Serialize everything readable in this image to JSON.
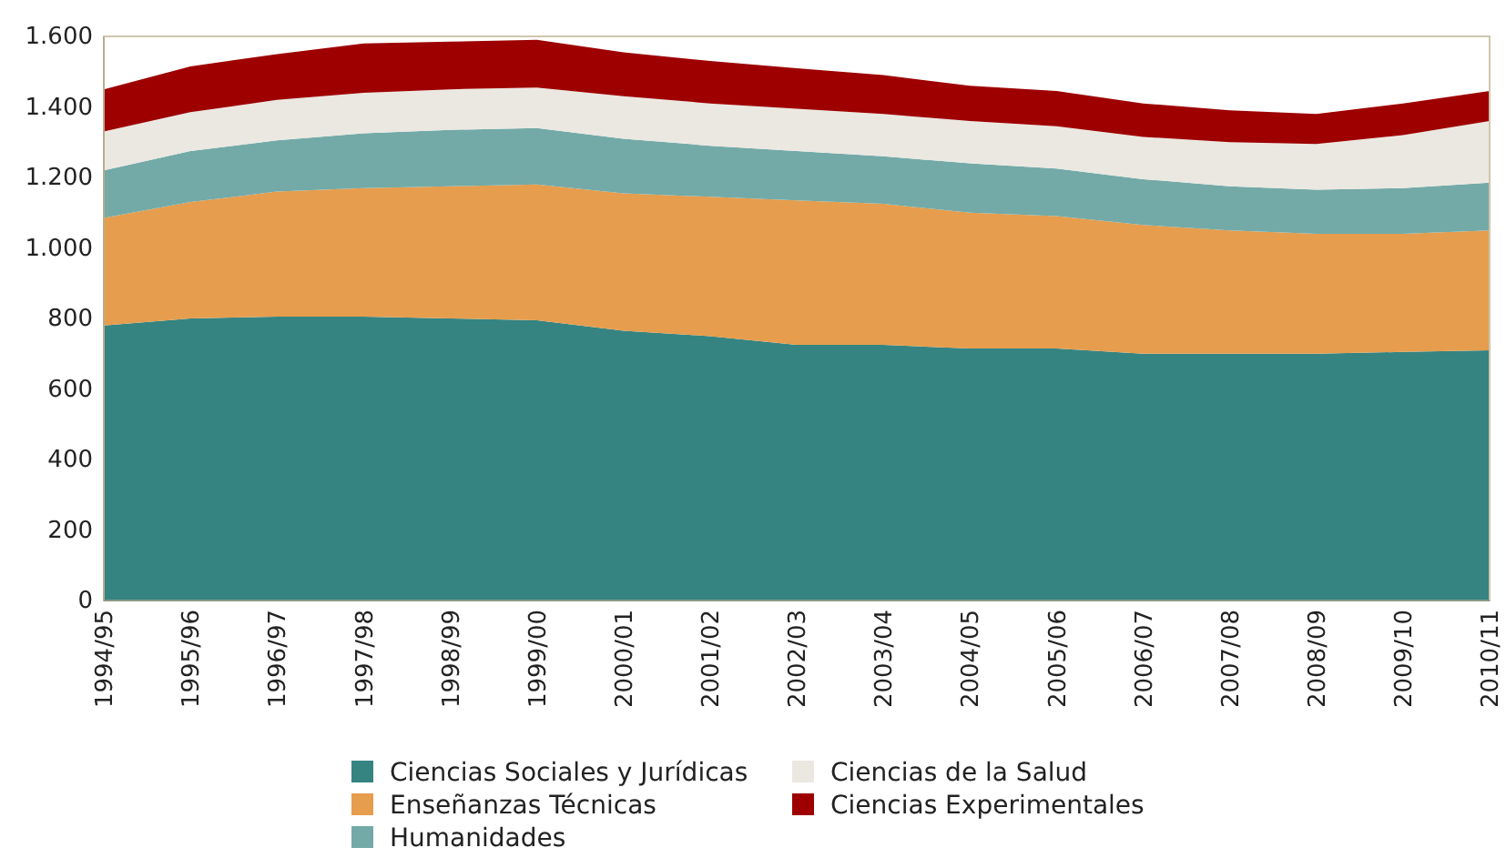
{
  "chart_data": {
    "type": "area",
    "stacked": true,
    "categories": [
      "1994/95",
      "1995/96",
      "1996/97",
      "1997/98",
      "1998/99",
      "1999/00",
      "2000/01",
      "2001/02",
      "2002/03",
      "2003/04",
      "2004/05",
      "2005/06",
      "2006/07",
      "2007/08",
      "2008/09",
      "2009/10",
      "2010/11"
    ],
    "series": [
      {
        "name": "Ciencias Sociales y Jurídicas",
        "color": "#358482",
        "values": [
          780,
          800,
          805,
          805,
          800,
          795,
          765,
          750,
          725,
          725,
          715,
          715,
          700,
          700,
          700,
          705,
          710
        ]
      },
      {
        "name": "Enseñanzas Técnicas",
        "color": "#e69d4d",
        "values": [
          305,
          330,
          355,
          365,
          375,
          385,
          390,
          395,
          410,
          400,
          385,
          375,
          365,
          350,
          340,
          335,
          340
        ]
      },
      {
        "name": "Humanidades",
        "color": "#73aaa8",
        "values": [
          135,
          145,
          145,
          155,
          160,
          160,
          155,
          145,
          140,
          135,
          140,
          135,
          130,
          125,
          125,
          130,
          135
        ]
      },
      {
        "name": "Ciencias de la Salud",
        "color": "#ebe8e1",
        "values": [
          110,
          110,
          115,
          115,
          115,
          115,
          120,
          120,
          120,
          120,
          120,
          120,
          120,
          125,
          130,
          150,
          175
        ]
      },
      {
        "name": "Ciencias Experimentales",
        "color": "#9e0000",
        "values": [
          120,
          130,
          130,
          140,
          135,
          135,
          125,
          120,
          115,
          110,
          100,
          100,
          95,
          90,
          85,
          90,
          85
        ]
      }
    ],
    "ylim": [
      0,
      1600
    ],
    "yticks": [
      0,
      200,
      400,
      600,
      800,
      {
        "value": 1000,
        "label": "1.000"
      },
      {
        "value": 1200,
        "label": "1.200"
      },
      {
        "value": 1400,
        "label": "1.400"
      },
      {
        "value": 1600,
        "label": "1.600"
      }
    ],
    "legend": "bottom"
  }
}
